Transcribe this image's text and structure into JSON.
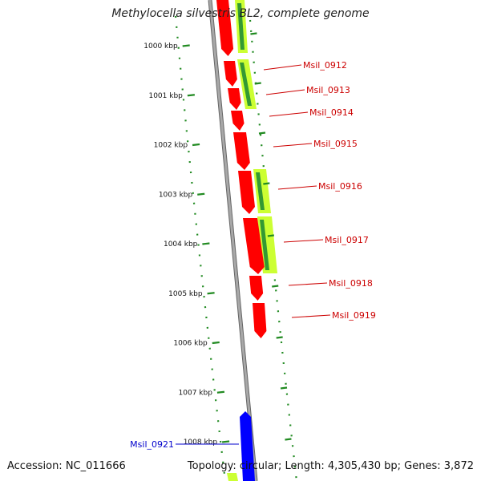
{
  "title": "Methylocella silvestris BL2, complete genome",
  "footer": {
    "accession": "Accession: NC_011666",
    "summary": "Topology: circular; Length: 4,305,430 bp; Genes: 3,872"
  },
  "colors": {
    "backbone": "#888888",
    "forward_gene": "#ff0000",
    "reverse_gene": "#0000ff",
    "feature_light": "#ccff33",
    "feature_dark": "#339933",
    "tick": "#228b22",
    "label_red": "#cc0000",
    "label_blue": "#0000cc"
  },
  "ticks": [
    "1000 kbp",
    "1001 kbp",
    "1002 kbp",
    "1003 kbp",
    "1004 kbp",
    "1005 kbp",
    "1006 kbp",
    "1007 kbp",
    "1008 kbp"
  ],
  "genes": [
    {
      "label": "Msil_0912",
      "strand": "forward"
    },
    {
      "label": "Msil_0913",
      "strand": "forward"
    },
    {
      "label": "Msil_0914",
      "strand": "forward"
    },
    {
      "label": "Msil_0915",
      "strand": "forward"
    },
    {
      "label": "Msil_0916",
      "strand": "forward"
    },
    {
      "label": "Msil_0917",
      "strand": "forward"
    },
    {
      "label": "Msil_0918",
      "strand": "forward"
    },
    {
      "label": "Msil_0919",
      "strand": "forward"
    },
    {
      "label": "Msil_0921",
      "strand": "reverse"
    }
  ]
}
